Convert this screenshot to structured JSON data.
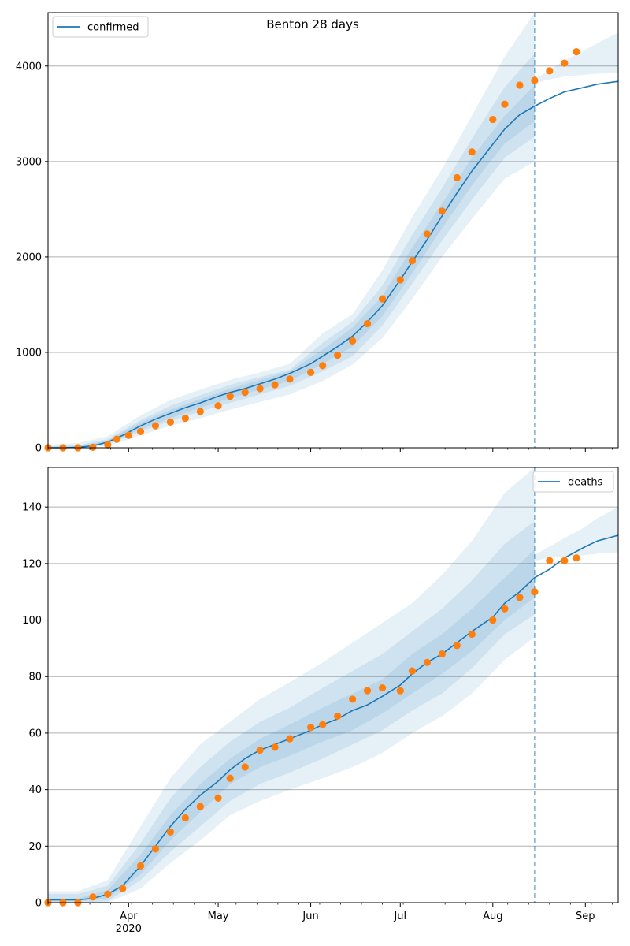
{
  "figure_title": "Benton 28 days",
  "colors": {
    "model_line": "#1f77b4",
    "band": "#1f77b4",
    "observed_points": "#ff7f0e",
    "grid": "#b0b0b0",
    "forecast_marker": "#1f77b4"
  },
  "x_axis": {
    "tick_labels": [
      "Apr",
      "May",
      "Jun",
      "Jul",
      "Aug",
      "Sep"
    ],
    "year_label": "2020"
  },
  "chart_data": [
    {
      "type": "line",
      "title": "Benton 28 days",
      "legend": {
        "label": "confirmed",
        "placement": "upper-left"
      },
      "xlabel": "",
      "ylabel": "",
      "x_range": [
        "2020-03-05",
        "2020-09-12"
      ],
      "ylim": [
        0,
        4560
      ],
      "y_ticks": [
        0,
        1000,
        2000,
        3000,
        4000
      ],
      "y_tick_labels": [
        "0",
        "1000",
        "2000",
        "3000",
        "4000"
      ],
      "grid": "horizontal",
      "forecast_start": "2020-08-15",
      "model_series": {
        "name": "confirmed",
        "x": [
          "2020-03-05",
          "2020-03-10",
          "2020-03-15",
          "2020-03-20",
          "2020-03-25",
          "2020-03-30",
          "2020-04-05",
          "2020-04-10",
          "2020-04-15",
          "2020-04-20",
          "2020-04-25",
          "2020-05-01",
          "2020-05-05",
          "2020-05-10",
          "2020-05-15",
          "2020-05-20",
          "2020-05-25",
          "2020-06-01",
          "2020-06-05",
          "2020-06-10",
          "2020-06-15",
          "2020-06-20",
          "2020-06-25",
          "2020-07-01",
          "2020-07-05",
          "2020-07-10",
          "2020-07-15",
          "2020-07-20",
          "2020-07-25",
          "2020-08-01",
          "2020-08-05",
          "2020-08-10",
          "2020-08-15",
          "2020-08-20",
          "2020-08-25",
          "2020-09-01",
          "2020-09-05",
          "2020-09-12"
        ],
        "y": [
          0,
          0,
          5,
          20,
          60,
          130,
          230,
          300,
          360,
          420,
          470,
          540,
          580,
          620,
          670,
          720,
          780,
          880,
          960,
          1060,
          1170,
          1320,
          1490,
          1760,
          1950,
          2180,
          2430,
          2670,
          2900,
          3180,
          3340,
          3490,
          3580,
          3660,
          3730,
          3780,
          3810,
          3840
        ]
      },
      "bands": [
        {
          "level": "outer",
          "x": [
            "2020-03-05",
            "2020-03-15",
            "2020-03-25",
            "2020-04-05",
            "2020-04-15",
            "2020-04-25",
            "2020-05-05",
            "2020-05-15",
            "2020-05-25",
            "2020-06-05",
            "2020-06-15",
            "2020-06-25",
            "2020-07-05",
            "2020-07-15",
            "2020-07-25",
            "2020-08-05",
            "2020-08-15"
          ],
          "lower": [
            0,
            0,
            20,
            130,
            230,
            310,
            400,
            480,
            560,
            700,
            870,
            1150,
            1560,
            2000,
            2400,
            2820,
            3000
          ],
          "upper": [
            30,
            50,
            120,
            340,
            500,
            610,
            710,
            790,
            880,
            1200,
            1400,
            1860,
            2420,
            2920,
            3480,
            4100,
            4560
          ]
        },
        {
          "level": "middle",
          "x": [
            "2020-03-05",
            "2020-03-15",
            "2020-03-25",
            "2020-04-05",
            "2020-04-15",
            "2020-04-25",
            "2020-05-05",
            "2020-05-15",
            "2020-05-25",
            "2020-06-05",
            "2020-06-15",
            "2020-06-25",
            "2020-07-05",
            "2020-07-15",
            "2020-07-25",
            "2020-08-05",
            "2020-08-15"
          ],
          "lower": [
            0,
            0,
            35,
            170,
            280,
            380,
            470,
            560,
            650,
            800,
            960,
            1280,
            1720,
            2170,
            2600,
            3040,
            3260
          ],
          "upper": [
            15,
            25,
            90,
            290,
            440,
            550,
            660,
            740,
            820,
            1100,
            1320,
            1700,
            2230,
            2720,
            3240,
            3780,
            4130
          ]
        },
        {
          "level": "inner",
          "x": [
            "2020-03-05",
            "2020-03-15",
            "2020-03-25",
            "2020-04-05",
            "2020-04-15",
            "2020-04-25",
            "2020-05-05",
            "2020-05-15",
            "2020-05-25",
            "2020-06-05",
            "2020-06-15",
            "2020-06-25",
            "2020-07-05",
            "2020-07-15",
            "2020-07-25",
            "2020-08-05",
            "2020-08-15"
          ],
          "lower": [
            0,
            0,
            45,
            195,
            310,
            420,
            520,
            610,
            700,
            880,
            1060,
            1380,
            1830,
            2300,
            2750,
            3190,
            3420
          ],
          "upper": [
            8,
            15,
            75,
            265,
            400,
            510,
            620,
            710,
            800,
            1030,
            1260,
            1590,
            2100,
            2560,
            3040,
            3480,
            3800
          ]
        },
        {
          "level": "post-forecast",
          "x": [
            "2020-08-15",
            "2020-08-20",
            "2020-08-25",
            "2020-09-01",
            "2020-09-05",
            "2020-09-12"
          ],
          "lower": [
            3820,
            3860,
            3890,
            3910,
            3920,
            3930
          ],
          "upper": [
            3860,
            3960,
            4060,
            4170,
            4240,
            4350
          ]
        }
      ],
      "observed": {
        "x": [
          "2020-03-05",
          "2020-03-10",
          "2020-03-15",
          "2020-03-20",
          "2020-03-25",
          "2020-03-28",
          "2020-04-01",
          "2020-04-05",
          "2020-04-10",
          "2020-04-15",
          "2020-04-20",
          "2020-04-25",
          "2020-05-01",
          "2020-05-05",
          "2020-05-10",
          "2020-05-15",
          "2020-05-20",
          "2020-05-25",
          "2020-06-01",
          "2020-06-05",
          "2020-06-10",
          "2020-06-15",
          "2020-06-20",
          "2020-06-25",
          "2020-07-01",
          "2020-07-05",
          "2020-07-10",
          "2020-07-15",
          "2020-07-20",
          "2020-07-25",
          "2020-08-01",
          "2020-08-05",
          "2020-08-10",
          "2020-08-15",
          "2020-08-20",
          "2020-08-25",
          "2020-08-29"
        ],
        "y": [
          0,
          0,
          0,
          5,
          30,
          90,
          130,
          170,
          230,
          270,
          310,
          380,
          440,
          540,
          580,
          620,
          660,
          720,
          790,
          860,
          970,
          1120,
          1300,
          1560,
          1760,
          1960,
          2240,
          2480,
          2830,
          3100,
          3440,
          3600,
          3800,
          3850,
          3950,
          4030,
          4150
        ]
      }
    },
    {
      "type": "line",
      "title": "",
      "legend": {
        "label": "deaths",
        "placement": "upper-right"
      },
      "xlabel": "",
      "ylabel": "",
      "x_range": [
        "2020-03-05",
        "2020-09-12"
      ],
      "ylim": [
        0,
        154
      ],
      "y_ticks": [
        0,
        20,
        40,
        60,
        80,
        100,
        120,
        140
      ],
      "y_tick_labels": [
        "0",
        "20",
        "40",
        "60",
        "80",
        "100",
        "120",
        "140"
      ],
      "grid": "horizontal",
      "forecast_start": "2020-08-15",
      "model_series": {
        "name": "deaths",
        "x": [
          "2020-03-05",
          "2020-03-10",
          "2020-03-15",
          "2020-03-20",
          "2020-03-25",
          "2020-03-30",
          "2020-04-05",
          "2020-04-10",
          "2020-04-15",
          "2020-04-20",
          "2020-04-25",
          "2020-05-01",
          "2020-05-05",
          "2020-05-10",
          "2020-05-15",
          "2020-05-20",
          "2020-05-25",
          "2020-06-01",
          "2020-06-05",
          "2020-06-10",
          "2020-06-15",
          "2020-06-20",
          "2020-06-25",
          "2020-07-01",
          "2020-07-05",
          "2020-07-10",
          "2020-07-15",
          "2020-07-20",
          "2020-07-25",
          "2020-08-01",
          "2020-08-05",
          "2020-08-10",
          "2020-08-15",
          "2020-08-20",
          "2020-08-25",
          "2020-09-01",
          "2020-09-05",
          "2020-09-12"
        ],
        "y": [
          1,
          1,
          1,
          1.5,
          3,
          6,
          13,
          20,
          27,
          33,
          38,
          43,
          47,
          51,
          54,
          56,
          58,
          61,
          63,
          65,
          68,
          70,
          73,
          77,
          81,
          85,
          88,
          92,
          96,
          101,
          106,
          110,
          115,
          118,
          122,
          126,
          128,
          130
        ]
      },
      "bands": [
        {
          "level": "outer",
          "x": [
            "2020-03-05",
            "2020-03-15",
            "2020-03-25",
            "2020-04-05",
            "2020-04-15",
            "2020-04-25",
            "2020-05-05",
            "2020-05-15",
            "2020-05-25",
            "2020-06-05",
            "2020-06-15",
            "2020-06-25",
            "2020-07-05",
            "2020-07-15",
            "2020-07-25",
            "2020-08-05",
            "2020-08-15"
          ],
          "lower": [
            0,
            0,
            0,
            5,
            14,
            22,
            31,
            36,
            40,
            44,
            48,
            53,
            60,
            66,
            74,
            86,
            94
          ],
          "upper": [
            4,
            4,
            8,
            27,
            44,
            56,
            64,
            72,
            78,
            85,
            92,
            99,
            106,
            116,
            128,
            145,
            154
          ]
        },
        {
          "level": "middle",
          "x": [
            "2020-03-05",
            "2020-03-15",
            "2020-03-25",
            "2020-04-05",
            "2020-04-15",
            "2020-04-25",
            "2020-05-05",
            "2020-05-15",
            "2020-05-25",
            "2020-06-05",
            "2020-06-15",
            "2020-06-25",
            "2020-07-05",
            "2020-07-15",
            "2020-07-25",
            "2020-08-05",
            "2020-08-15"
          ],
          "lower": [
            0,
            0,
            0.5,
            8,
            18,
            27,
            36,
            42,
            46,
            51,
            56,
            61,
            68,
            74,
            83,
            95,
            102
          ],
          "upper": [
            3,
            3,
            6,
            21,
            37,
            48,
            57,
            64,
            69,
            76,
            82,
            88,
            96,
            104,
            114,
            127,
            135
          ]
        },
        {
          "level": "inner",
          "x": [
            "2020-03-05",
            "2020-03-15",
            "2020-03-25",
            "2020-04-05",
            "2020-04-15",
            "2020-04-25",
            "2020-05-05",
            "2020-05-15",
            "2020-05-25",
            "2020-06-05",
            "2020-06-15",
            "2020-06-25",
            "2020-07-05",
            "2020-07-15",
            "2020-07-25",
            "2020-08-05",
            "2020-08-15"
          ],
          "lower": [
            0.5,
            0.5,
            1.5,
            10,
            22,
            32,
            42,
            48,
            52,
            57,
            61,
            67,
            74,
            81,
            89,
            100,
            108
          ],
          "upper": [
            1.5,
            1.5,
            4.5,
            17,
            31,
            42,
            51,
            58,
            63,
            69,
            74,
            79,
            88,
            95,
            104,
            115,
            125
          ]
        },
        {
          "level": "post-forecast",
          "x": [
            "2020-08-15",
            "2020-08-20",
            "2020-08-25",
            "2020-09-01",
            "2020-09-05",
            "2020-09-12"
          ],
          "lower": [
            121,
            122,
            122.5,
            123,
            123.5,
            124
          ],
          "upper": [
            123,
            126,
            129,
            133,
            136,
            140
          ]
        }
      ],
      "observed": {
        "x": [
          "2020-03-05",
          "2020-03-10",
          "2020-03-15",
          "2020-03-20",
          "2020-03-25",
          "2020-03-30",
          "2020-04-05",
          "2020-04-10",
          "2020-04-15",
          "2020-04-20",
          "2020-04-25",
          "2020-05-01",
          "2020-05-05",
          "2020-05-10",
          "2020-05-15",
          "2020-05-20",
          "2020-05-25",
          "2020-06-01",
          "2020-06-05",
          "2020-06-10",
          "2020-06-15",
          "2020-06-20",
          "2020-06-25",
          "2020-07-01",
          "2020-07-05",
          "2020-07-10",
          "2020-07-15",
          "2020-07-20",
          "2020-07-25",
          "2020-08-01",
          "2020-08-05",
          "2020-08-10",
          "2020-08-15",
          "2020-08-20",
          "2020-08-25",
          "2020-08-29"
        ],
        "y": [
          0,
          0,
          0,
          2,
          3,
          5,
          13,
          19,
          25,
          30,
          34,
          37,
          44,
          48,
          54,
          55,
          58,
          62,
          63,
          66,
          72,
          75,
          76,
          75,
          82,
          85,
          88,
          91,
          95,
          100,
          104,
          108,
          110,
          121,
          121,
          122
        ]
      }
    }
  ]
}
